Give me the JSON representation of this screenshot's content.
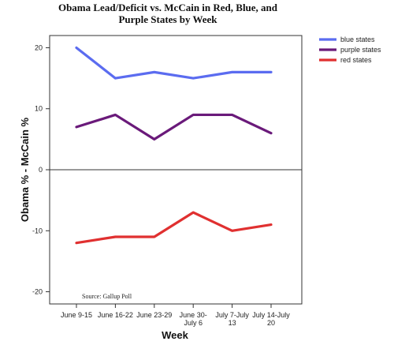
{
  "chart_data": {
    "type": "line",
    "title_lines": [
      "Obama Lead/Deficit vs. McCain in Red, Blue, and",
      "Purple States by Week"
    ],
    "xlabel": "Week",
    "ylabel": "Obama % - McCain %",
    "categories": [
      [
        "June 9-15"
      ],
      [
        "June 16-22"
      ],
      [
        "June 23-29"
      ],
      [
        "June 30-",
        "July 6"
      ],
      [
        "July 7-July",
        "13"
      ],
      [
        "July 14-July",
        "20"
      ]
    ],
    "yticks": [
      20,
      10,
      0,
      -10,
      -20
    ],
    "ylim": [
      -22,
      22
    ],
    "zero_line": true,
    "grid": false,
    "legend_position": "top-right",
    "annotation": "Source: Gallup Poll",
    "series": [
      {
        "name": "blue states",
        "color": "#5b6cf0",
        "values": [
          20,
          15,
          16,
          15,
          16,
          16
        ]
      },
      {
        "name": "purple states",
        "color": "#6a1a7a",
        "values": [
          7,
          9,
          5,
          9,
          9,
          6
        ]
      },
      {
        "name": "red states",
        "color": "#e03030",
        "values": [
          -12,
          -11,
          -11,
          -7,
          -10,
          -9
        ]
      }
    ]
  }
}
